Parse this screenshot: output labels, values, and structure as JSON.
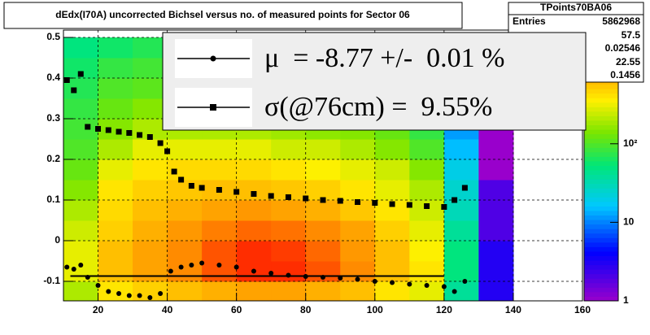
{
  "chart_data": {
    "type": "heatmap",
    "title": "dEdx(I70A) uncorrected Bichsel versus no. of measured points for Sector 06",
    "xlim": [
      10,
      160
    ],
    "xticks": [
      20,
      40,
      60,
      80,
      100,
      120,
      140,
      160
    ],
    "ylim": [
      -0.148,
      0.518
    ],
    "yticks": [
      -0.1,
      0,
      0.1,
      0.2,
      0.3,
      0.4,
      0.5
    ],
    "zlim": [
      1,
      2800
    ],
    "zlog": true,
    "zticks": [
      1,
      10,
      {
        "value": 100,
        "label": "10²"
      }
    ],
    "grid": true,
    "heatmap": {
      "x_edges": [
        10,
        20,
        30,
        40,
        50,
        60,
        70,
        80,
        90,
        100,
        110,
        120,
        130,
        140
      ],
      "y_edges": [
        -0.15,
        -0.1,
        -0.05,
        0,
        0.05,
        0.1,
        0.15,
        0.2,
        0.25,
        0.3,
        0.35,
        0.4,
        0.45,
        0.5
      ],
      "counts": [
        [
          200,
          400,
          500,
          600,
          700,
          800,
          800,
          700,
          600,
          400,
          300,
          40,
          3
        ],
        [
          300,
          600,
          800,
          1000,
          1500,
          2000,
          2000,
          1500,
          1000,
          600,
          400,
          50,
          3
        ],
        [
          300,
          600,
          800,
          1000,
          1500,
          2000,
          1800,
          1300,
          900,
          600,
          350,
          50,
          3
        ],
        [
          250,
          500,
          700,
          900,
          1100,
          1300,
          1200,
          1000,
          800,
          500,
          300,
          40,
          2
        ],
        [
          200,
          450,
          600,
          700,
          800,
          900,
          800,
          700,
          550,
          400,
          250,
          30,
          2
        ],
        [
          150,
          400,
          500,
          550,
          600,
          600,
          550,
          500,
          400,
          300,
          200,
          25,
          2
        ],
        [
          120,
          300,
          400,
          450,
          450,
          450,
          400,
          350,
          300,
          250,
          150,
          20,
          1
        ],
        [
          100,
          200,
          300,
          300,
          300,
          300,
          250,
          250,
          200,
          150,
          100,
          15,
          1
        ],
        [
          90,
          150,
          200,
          200,
          200,
          200,
          180,
          160,
          150,
          120,
          80,
          12,
          1
        ],
        [
          80,
          120,
          150,
          150,
          150,
          150,
          130,
          120,
          110,
          90,
          60,
          10,
          1
        ],
        [
          70,
          100,
          110,
          110,
          110,
          100,
          100,
          90,
          80,
          70,
          50,
          8,
          1
        ],
        [
          60,
          80,
          90,
          90,
          90,
          80,
          80,
          70,
          60,
          50,
          40,
          6,
          1
        ],
        [
          50,
          60,
          70,
          70,
          70,
          60,
          60,
          50,
          50,
          40,
          30,
          5,
          1
        ]
      ]
    },
    "reference_line": {
      "y": -0.087,
      "xlim": [
        12,
        120
      ]
    },
    "series": [
      {
        "name": "μ  = -8.77 +/-  0.01 %",
        "marker": "circle",
        "color": "#000000",
        "x": [
          11,
          13,
          15,
          17,
          20,
          23,
          26,
          29,
          32,
          35,
          38,
          41,
          44,
          47,
          50,
          55,
          60,
          65,
          70,
          75,
          80,
          85,
          90,
          95,
          100,
          105,
          110,
          115,
          120,
          123,
          126
        ],
        "values": [
          -0.065,
          -0.07,
          -0.06,
          -0.09,
          -0.11,
          -0.125,
          -0.13,
          -0.135,
          -0.135,
          -0.14,
          -0.13,
          -0.075,
          -0.065,
          -0.06,
          -0.055,
          -0.06,
          -0.065,
          -0.075,
          -0.08,
          -0.085,
          -0.088,
          -0.09,
          -0.092,
          -0.095,
          -0.1,
          -0.103,
          -0.107,
          -0.11,
          -0.113,
          -0.125,
          -0.1
        ]
      },
      {
        "name": "σ(@76cm) =  9.55%",
        "marker": "square",
        "color": "#000000",
        "x": [
          11,
          13,
          15,
          17,
          20,
          23,
          26,
          29,
          32,
          35,
          38,
          40,
          42,
          44,
          47,
          50,
          55,
          60,
          65,
          70,
          75,
          80,
          85,
          90,
          95,
          100,
          105,
          110,
          115,
          120,
          123,
          126
        ],
        "values": [
          0.395,
          0.37,
          0.41,
          0.28,
          0.275,
          0.272,
          0.268,
          0.265,
          0.26,
          0.255,
          0.24,
          0.22,
          0.17,
          0.15,
          0.135,
          0.13,
          0.125,
          0.12,
          0.115,
          0.11,
          0.107,
          0.104,
          0.1,
          0.098,
          0.095,
          0.093,
          0.09,
          0.088,
          0.085,
          0.083,
          0.1,
          0.13
        ]
      }
    ],
    "stats": {
      "title": "TPoints70BA06",
      "entries_label": "Entries",
      "entries": "5862968",
      "values": [
        "57.5",
        "0.02546",
        "22.55",
        "0.1456"
      ]
    }
  }
}
